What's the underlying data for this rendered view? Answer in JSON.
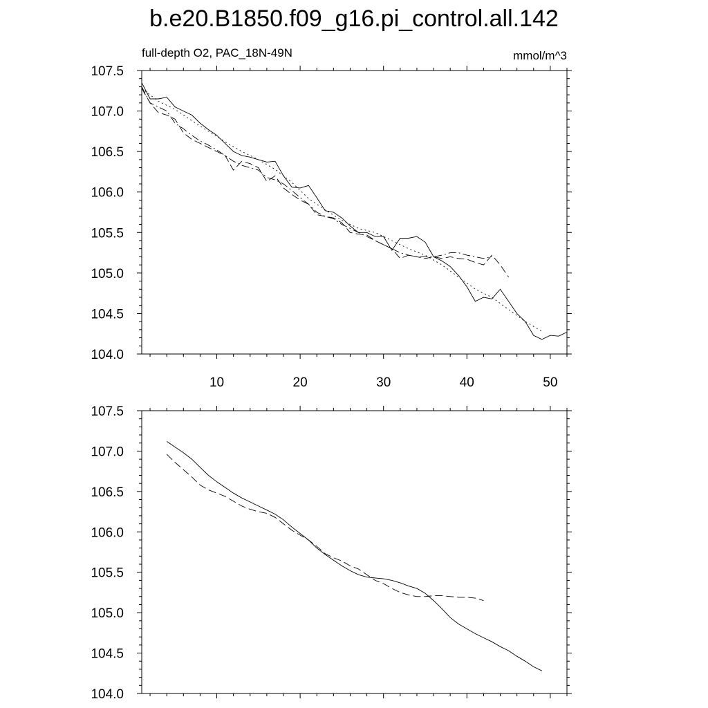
{
  "figure": {
    "title": "b.e20.B1850.f09_g16.pi_control.all.142",
    "left_string": "full-depth O2, PAC_18N-49N",
    "right_string": "mmol/m^3"
  },
  "chart_data": [
    {
      "type": "line",
      "ylim": [
        104.0,
        107.5
      ],
      "xlim": [
        1,
        52
      ],
      "yticks": [
        104.0,
        104.5,
        105.0,
        105.5,
        106.0,
        106.5,
        107.0,
        107.5
      ],
      "ytick_labels": [
        "104.0",
        "104.5",
        "105.0",
        "105.5",
        "106.0",
        "106.5",
        "107.0",
        "107.5"
      ],
      "xticks": [
        10,
        20,
        30,
        40,
        50
      ],
      "xtick_labels": [
        "10",
        "20",
        "30",
        "40",
        "50"
      ],
      "series": [
        {
          "style": "solid",
          "x": [
            1,
            2,
            3,
            4,
            5,
            6,
            7,
            8,
            9,
            10,
            11,
            12,
            13,
            14,
            15,
            16,
            17,
            18,
            19,
            20,
            21,
            22,
            23,
            24,
            25,
            26,
            27,
            28,
            29,
            30,
            31,
            32,
            33,
            34,
            35,
            36,
            37,
            38,
            39,
            40,
            41,
            42,
            43,
            44,
            45,
            46,
            47,
            48,
            49,
            50,
            51,
            52
          ],
          "y": [
            107.35,
            107.15,
            107.15,
            107.17,
            107.05,
            107.0,
            106.95,
            106.85,
            106.77,
            106.7,
            106.6,
            106.5,
            106.45,
            106.43,
            106.4,
            106.37,
            106.38,
            106.2,
            106.06,
            106.05,
            106.08,
            105.93,
            105.77,
            105.75,
            105.68,
            105.58,
            105.5,
            105.5,
            105.45,
            105.45,
            105.28,
            105.43,
            105.43,
            105.45,
            105.38,
            105.2,
            105.15,
            105.08,
            104.97,
            104.83,
            104.65,
            104.7,
            104.68,
            104.8,
            104.65,
            104.5,
            104.4,
            104.23,
            104.18,
            104.23,
            104.22,
            104.27
          ]
        },
        {
          "style": "dashed",
          "x": [
            1,
            2,
            3,
            4,
            5,
            6,
            7,
            8,
            9,
            10,
            11,
            12,
            13,
            14,
            15,
            16,
            17,
            18,
            19,
            20,
            21,
            22,
            23,
            24,
            25,
            26,
            27,
            28,
            29,
            30,
            31,
            32,
            33,
            34,
            35,
            36,
            37,
            38,
            39,
            40,
            41,
            42,
            43,
            44,
            45
          ],
          "y": [
            107.28,
            107.1,
            106.98,
            106.95,
            106.9,
            106.73,
            106.65,
            106.6,
            106.55,
            106.5,
            106.45,
            106.27,
            106.38,
            106.35,
            106.3,
            106.13,
            106.2,
            106.05,
            105.97,
            105.9,
            105.85,
            105.72,
            105.7,
            105.68,
            105.62,
            105.5,
            105.48,
            105.47,
            105.4,
            105.35,
            105.3,
            105.18,
            105.22,
            105.2,
            105.18,
            105.2,
            105.18,
            105.2,
            105.18,
            105.17,
            105.13,
            105.1,
            105.22,
            105.1,
            104.95
          ]
        },
        {
          "style": "dash-dot",
          "x": [
            1,
            2,
            3,
            4,
            5,
            6,
            7,
            8,
            9,
            10,
            11,
            12,
            13,
            14,
            15,
            16,
            17,
            18,
            19,
            20,
            21,
            22,
            23,
            24,
            25,
            26,
            27,
            28,
            29,
            30,
            31,
            32,
            33,
            34,
            35,
            36,
            37,
            38,
            39,
            40,
            41,
            42,
            43
          ],
          "y": [
            107.3,
            107.1,
            107.05,
            107.0,
            106.85,
            106.78,
            106.7,
            106.63,
            106.58,
            106.52,
            106.45,
            106.38,
            106.33,
            106.3,
            106.27,
            106.18,
            106.15,
            106.1,
            106.02,
            105.93,
            105.85,
            105.75,
            105.7,
            105.67,
            105.6,
            105.55,
            105.5,
            105.45,
            105.4,
            105.35,
            105.3,
            105.25,
            105.22,
            105.2,
            105.2,
            105.2,
            105.22,
            105.25,
            105.25,
            105.22,
            105.2,
            105.18,
            105.2
          ]
        },
        {
          "style": "dotted",
          "x": [
            1,
            3,
            5,
            7,
            9,
            11,
            13,
            15,
            17,
            19,
            21,
            23,
            25,
            27,
            29,
            31,
            33,
            35,
            37,
            39,
            41,
            43,
            45,
            47,
            49
          ],
          "y": [
            107.28,
            107.12,
            107.02,
            106.88,
            106.75,
            106.62,
            106.5,
            106.4,
            106.28,
            106.12,
            105.92,
            105.78,
            105.65,
            105.55,
            105.5,
            105.4,
            105.3,
            105.22,
            105.1,
            104.95,
            104.8,
            104.7,
            104.55,
            104.4,
            104.28
          ]
        }
      ]
    },
    {
      "type": "line",
      "ylim": [
        104.0,
        107.5
      ],
      "xlim": [
        1,
        52
      ],
      "yticks": [
        104.0,
        104.5,
        105.0,
        105.5,
        106.0,
        106.5,
        107.0,
        107.5
      ],
      "ytick_labels": [
        "104.0",
        "104.5",
        "105.0",
        "105.5",
        "106.0",
        "106.5",
        "107.0",
        "107.5"
      ],
      "xticks": [
        10,
        20,
        30,
        40,
        50
      ],
      "series": [
        {
          "style": "solid",
          "x": [
            4,
            5,
            6,
            7,
            8,
            9,
            10,
            11,
            12,
            13,
            14,
            15,
            16,
            17,
            18,
            19,
            20,
            21,
            22,
            23,
            24,
            25,
            26,
            27,
            28,
            29,
            30,
            31,
            32,
            33,
            34,
            35,
            36,
            37,
            38,
            39,
            40,
            41,
            42,
            43,
            44,
            45,
            46,
            47,
            48,
            49
          ],
          "y": [
            107.12,
            107.05,
            106.98,
            106.9,
            106.8,
            106.7,
            106.62,
            106.55,
            106.48,
            106.42,
            106.37,
            106.32,
            106.27,
            106.22,
            106.15,
            106.06,
            105.98,
            105.9,
            105.8,
            105.72,
            105.65,
            105.58,
            105.52,
            105.47,
            105.44,
            105.43,
            105.42,
            105.4,
            105.37,
            105.33,
            105.3,
            105.24,
            105.15,
            105.05,
            104.94,
            104.86,
            104.8,
            104.74,
            104.69,
            104.64,
            104.58,
            104.53,
            104.46,
            104.4,
            104.33,
            104.28
          ]
        },
        {
          "style": "dashed",
          "x": [
            4,
            5,
            6,
            7,
            8,
            9,
            10,
            11,
            12,
            13,
            14,
            15,
            16,
            17,
            18,
            19,
            20,
            21,
            22,
            23,
            24,
            25,
            26,
            27,
            28,
            29,
            30,
            31,
            32,
            33,
            34,
            35,
            36,
            37,
            38,
            39,
            40,
            41,
            42
          ],
          "y": [
            106.96,
            106.86,
            106.77,
            106.68,
            106.58,
            106.52,
            106.48,
            106.44,
            106.38,
            106.32,
            106.28,
            106.25,
            106.23,
            106.18,
            106.1,
            106.02,
            105.96,
            105.9,
            105.82,
            105.73,
            105.68,
            105.64,
            105.58,
            105.54,
            105.47,
            105.4,
            105.36,
            105.3,
            105.25,
            105.22,
            105.2,
            105.2,
            105.21,
            105.21,
            105.2,
            105.19,
            105.19,
            105.18,
            105.15
          ]
        }
      ]
    }
  ]
}
